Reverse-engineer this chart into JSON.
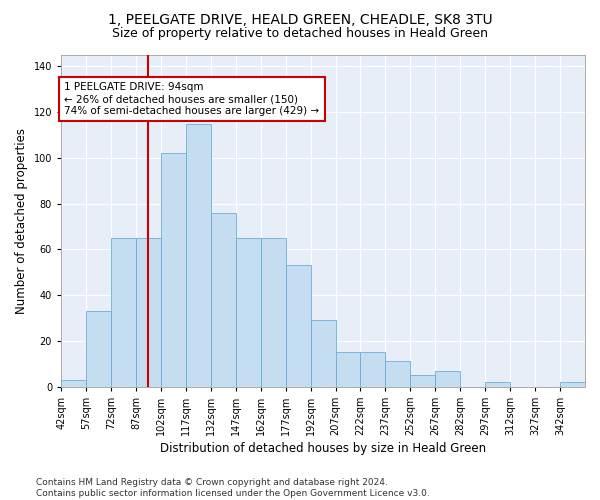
{
  "title1": "1, PEELGATE DRIVE, HEALD GREEN, CHEADLE, SK8 3TU",
  "title2": "Size of property relative to detached houses in Heald Green",
  "xlabel": "Distribution of detached houses by size in Heald Green",
  "ylabel": "Number of detached properties",
  "footnote": "Contains HM Land Registry data © Crown copyright and database right 2024.\nContains public sector information licensed under the Open Government Licence v3.0.",
  "bin_edges": [
    42,
    57,
    72,
    87,
    102,
    117,
    132,
    147,
    162,
    177,
    192,
    207,
    222,
    237,
    252,
    267,
    282,
    297,
    312,
    327,
    342
  ],
  "bar_heights": [
    3,
    33,
    65,
    65,
    102,
    115,
    76,
    65,
    65,
    53,
    29,
    15,
    15,
    11,
    5,
    7,
    0,
    2,
    0,
    0,
    2
  ],
  "property_size": 94,
  "vline_x": 94,
  "annotation_line1": "1 PEELGATE DRIVE: 94sqm",
  "annotation_line2": "← 26% of detached houses are smaller (150)",
  "annotation_line3": "74% of semi-detached houses are larger (429) →",
  "bar_color": "#c5ddf0",
  "bar_edge_color": "#6baed6",
  "vline_color": "#cc0000",
  "annotation_box_edge": "#cc0000",
  "ax_facecolor": "#e8eef8",
  "background_color": "#ffffff",
  "ylim": [
    0,
    145
  ],
  "grid_color": "#ffffff",
  "title1_fontsize": 10,
  "title2_fontsize": 9,
  "xlabel_fontsize": 8.5,
  "ylabel_fontsize": 8.5,
  "tick_fontsize": 7,
  "annotation_fontsize": 7.5,
  "footnote_fontsize": 6.5
}
